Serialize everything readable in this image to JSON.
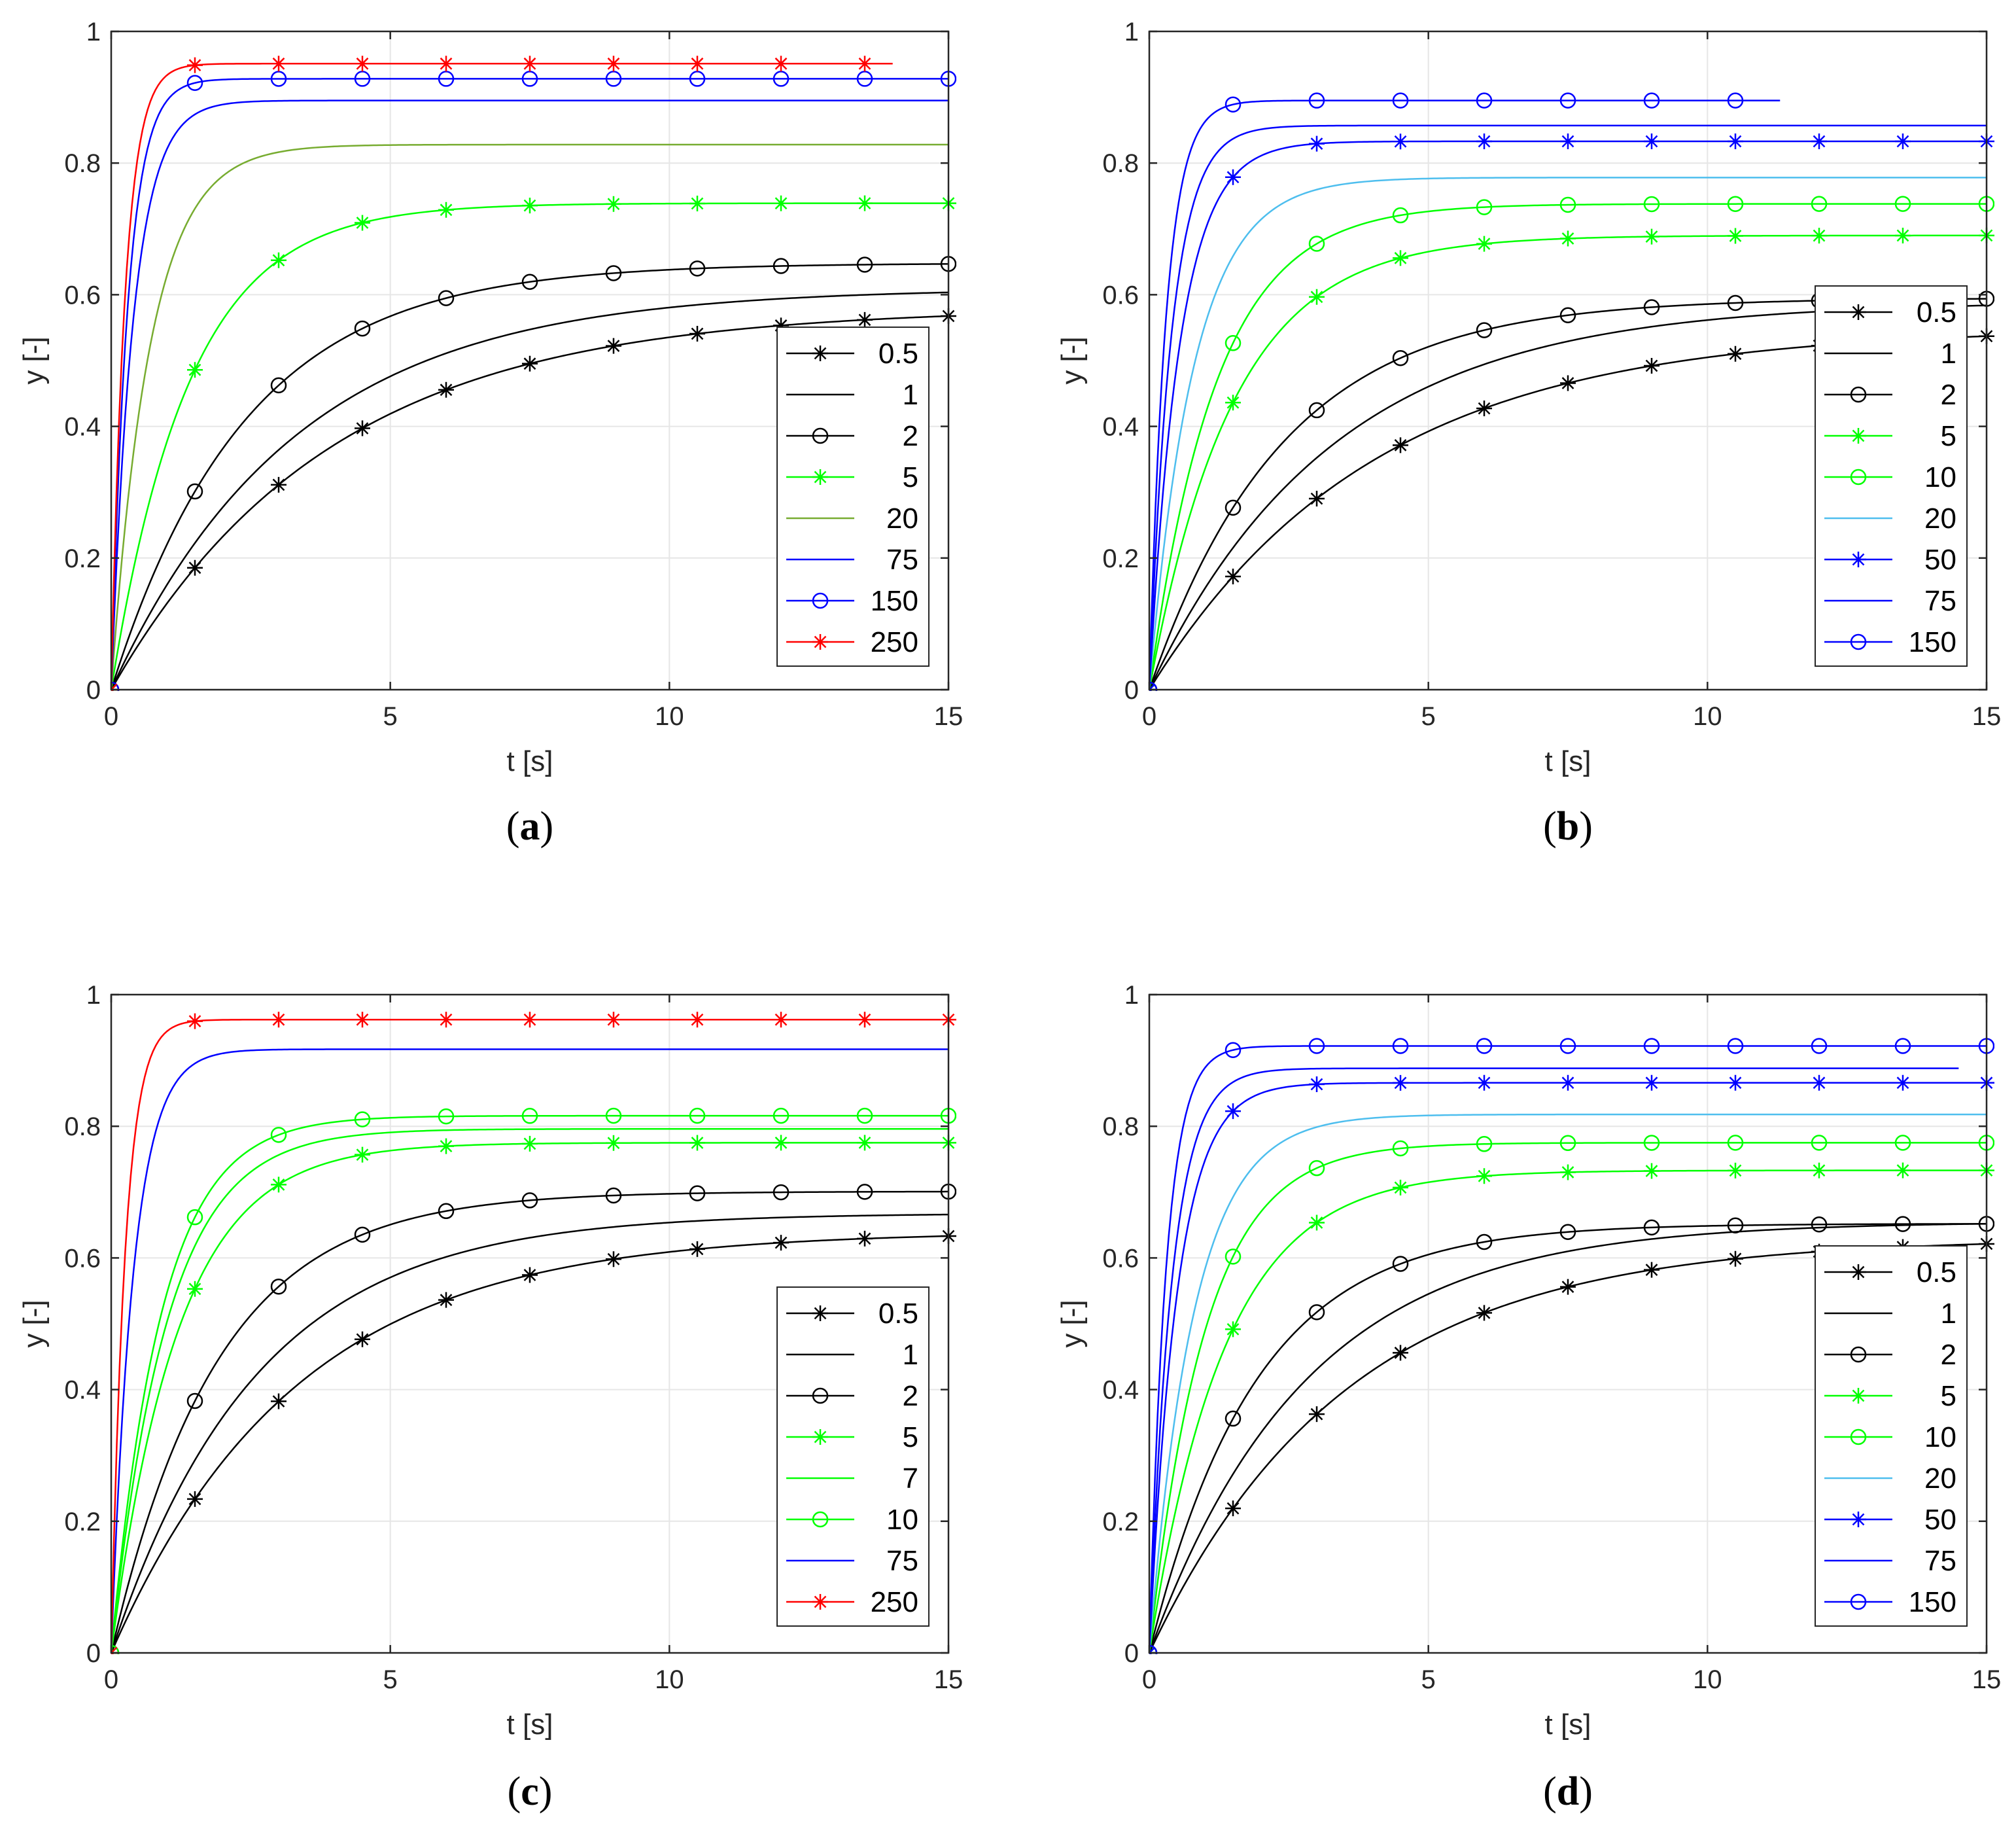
{
  "chart_data": [
    {
      "type": "line",
      "panel": "a",
      "caption": "(a)",
      "xlabel": "t [s]",
      "ylabel": "y [-]",
      "xlim": [
        0,
        15
      ],
      "ylim": [
        0,
        1
      ],
      "xticks": [
        0,
        5,
        10,
        15
      ],
      "xtick_labels": [
        "0",
        "5",
        "10",
        "15"
      ],
      "yticks": [
        0,
        0.2,
        0.4,
        0.6,
        0.8,
        1
      ],
      "ytick_labels": [
        "0",
        "0.2",
        "0.4",
        "0.6",
        "0.8",
        "1"
      ],
      "grid": true,
      "legend_position": "right-middle",
      "series": [
        {
          "name": "0.5",
          "color": "#000000",
          "marker": "star",
          "final": 0.58,
          "tau": 3.9,
          "t_end": 15
        },
        {
          "name": "1",
          "color": "#000000",
          "marker": "none",
          "final": 0.61,
          "tau": 3.3,
          "t_end": 15
        },
        {
          "name": "2",
          "color": "#000000",
          "marker": "circle",
          "final": 0.648,
          "tau": 2.4,
          "t_end": 15
        },
        {
          "name": "5",
          "color": "#00ff00",
          "marker": "star",
          "final": 0.739,
          "tau": 1.4,
          "t_end": 15
        },
        {
          "name": "20",
          "color": "#77ac30",
          "marker": "none",
          "final": 0.828,
          "tau": 0.7,
          "t_end": 15
        },
        {
          "name": "75",
          "color": "#0000ff",
          "marker": "none",
          "final": 0.895,
          "tau": 0.4,
          "t_end": 15
        },
        {
          "name": "150",
          "color": "#0000ff",
          "marker": "circle",
          "final": 0.928,
          "tau": 0.3,
          "t_end": 15
        },
        {
          "name": "250",
          "color": "#ff0000",
          "marker": "star",
          "final": 0.951,
          "tau": 0.25,
          "t_end": 14
        }
      ]
    },
    {
      "type": "line",
      "panel": "b",
      "caption": "(b)",
      "xlabel": "t [s]",
      "ylabel": "y [-]",
      "xlim": [
        0,
        15
      ],
      "ylim": [
        0,
        1
      ],
      "xticks": [
        0,
        5,
        10,
        15
      ],
      "xtick_labels": [
        "0",
        "5",
        "10",
        "15"
      ],
      "yticks": [
        0,
        0.2,
        0.4,
        0.6,
        0.8,
        1
      ],
      "ytick_labels": [
        "0",
        "0.2",
        "0.4",
        "0.6",
        "0.8",
        "1"
      ],
      "grid": true,
      "legend_position": "right-bottom",
      "series": [
        {
          "name": "0.5",
          "color": "#000000",
          "marker": "star",
          "final": 0.55,
          "tau": 4.0,
          "t_end": 15
        },
        {
          "name": "1",
          "color": "#000000",
          "marker": "none",
          "final": 0.59,
          "tau": 3.3,
          "t_end": 15
        },
        {
          "name": "2",
          "color": "#000000",
          "marker": "circle",
          "final": 0.595,
          "tau": 2.4,
          "t_end": 15
        },
        {
          "name": "5",
          "color": "#00ff00",
          "marker": "star",
          "final": 0.69,
          "tau": 1.5,
          "t_end": 15
        },
        {
          "name": "10",
          "color": "#00ff00",
          "marker": "circle",
          "final": 0.738,
          "tau": 1.2,
          "t_end": 15
        },
        {
          "name": "20",
          "color": "#4dbeee",
          "marker": "none",
          "final": 0.778,
          "tau": 0.8,
          "t_end": 15
        },
        {
          "name": "50",
          "color": "#0000ff",
          "marker": "star",
          "final": 0.833,
          "tau": 0.55,
          "t_end": 15
        },
        {
          "name": "75",
          "color": "#0000ff",
          "marker": "none",
          "final": 0.857,
          "tau": 0.4,
          "t_end": 15
        },
        {
          "name": "150",
          "color": "#0000ff",
          "marker": "circle",
          "final": 0.895,
          "tau": 0.3,
          "t_end": 11.3
        }
      ]
    },
    {
      "type": "line",
      "panel": "c",
      "caption": "(c)",
      "xlabel": "t [s]",
      "ylabel": "y [-]",
      "xlim": [
        0,
        15
      ],
      "ylim": [
        0,
        1
      ],
      "xticks": [
        0,
        5,
        10,
        15
      ],
      "xtick_labels": [
        "0",
        "5",
        "10",
        "15"
      ],
      "yticks": [
        0,
        0.2,
        0.4,
        0.6,
        0.8,
        1
      ],
      "ytick_labels": [
        "0",
        "0.2",
        "0.4",
        "0.6",
        "0.8",
        "1"
      ],
      "grid": true,
      "legend_position": "right-bottom",
      "series": [
        {
          "name": "0.5",
          "color": "#000000",
          "marker": "star",
          "final": 0.64,
          "tau": 3.3,
          "t_end": 15
        },
        {
          "name": "1",
          "color": "#000000",
          "marker": "none",
          "final": 0.668,
          "tau": 2.6,
          "t_end": 15
        },
        {
          "name": "2",
          "color": "#000000",
          "marker": "circle",
          "final": 0.701,
          "tau": 1.9,
          "t_end": 15
        },
        {
          "name": "5",
          "color": "#00ff00",
          "marker": "star",
          "final": 0.775,
          "tau": 1.2,
          "t_end": 15
        },
        {
          "name": "7",
          "color": "#00ff00",
          "marker": "none",
          "final": 0.796,
          "tau": 1.0,
          "t_end": 15
        },
        {
          "name": "10",
          "color": "#00ff00",
          "marker": "circle",
          "final": 0.816,
          "tau": 0.9,
          "t_end": 15
        },
        {
          "name": "75",
          "color": "#0000ff",
          "marker": "none",
          "final": 0.917,
          "tau": 0.4,
          "t_end": 15
        },
        {
          "name": "250",
          "color": "#ff0000",
          "marker": "star",
          "final": 0.962,
          "tau": 0.25,
          "t_end": 15
        }
      ]
    },
    {
      "type": "line",
      "panel": "d",
      "caption": "(d)",
      "xlabel": "t [s]",
      "ylabel": "y [-]",
      "xlim": [
        0,
        15
      ],
      "ylim": [
        0,
        1
      ],
      "xticks": [
        0,
        5,
        10,
        15
      ],
      "xtick_labels": [
        "0",
        "5",
        "10",
        "15"
      ],
      "yticks": [
        0,
        0.2,
        0.4,
        0.6,
        0.8,
        1
      ],
      "ytick_labels": [
        "0",
        "0.2",
        "0.4",
        "0.6",
        "0.8",
        "1"
      ],
      "grid": true,
      "legend_position": "right-bottom",
      "series": [
        {
          "name": "0.5",
          "color": "#000000",
          "marker": "star",
          "final": 0.63,
          "tau": 3.5,
          "t_end": 15
        },
        {
          "name": "1",
          "color": "#000000",
          "marker": "none",
          "final": 0.655,
          "tau": 2.8,
          "t_end": 15
        },
        {
          "name": "2",
          "color": "#000000",
          "marker": "circle",
          "final": 0.652,
          "tau": 1.9,
          "t_end": 15
        },
        {
          "name": "5",
          "color": "#00ff00",
          "marker": "star",
          "final": 0.733,
          "tau": 1.35,
          "t_end": 15
        },
        {
          "name": "10",
          "color": "#00ff00",
          "marker": "circle",
          "final": 0.775,
          "tau": 1.0,
          "t_end": 15
        },
        {
          "name": "20",
          "color": "#4dbeee",
          "marker": "none",
          "final": 0.818,
          "tau": 0.8,
          "t_end": 15
        },
        {
          "name": "50",
          "color": "#0000ff",
          "marker": "star",
          "final": 0.866,
          "tau": 0.5,
          "t_end": 15
        },
        {
          "name": "75",
          "color": "#0000ff",
          "marker": "none",
          "final": 0.888,
          "tau": 0.4,
          "t_end": 14.5
        },
        {
          "name": "150",
          "color": "#0000ff",
          "marker": "circle",
          "final": 0.922,
          "tau": 0.3,
          "t_end": 15
        }
      ]
    }
  ]
}
